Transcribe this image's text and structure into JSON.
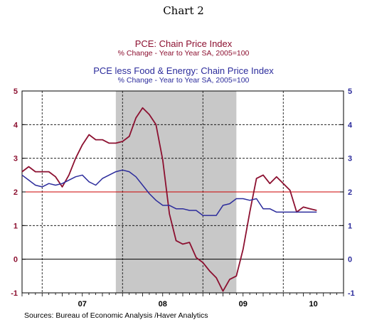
{
  "chart_data": {
    "type": "line",
    "title": "Chart 2",
    "source": "Sources:  Bureau of Economic Analysis /Haver Analytics",
    "colors": {
      "pce": "#8c1030",
      "core": "#2c2c9c",
      "recession": "#c8c8c8",
      "ref_line": "#cc0000"
    },
    "ylim": [
      -1,
      5
    ],
    "yticks": [
      "-1",
      "0",
      "1",
      "2",
      "3",
      "4",
      "5"
    ],
    "yticks_right": [
      "-1",
      "0",
      "1",
      "2",
      "3",
      "4",
      "5"
    ],
    "x_categories": [
      "07",
      "08",
      "09",
      "10"
    ],
    "x_start": "2006-10",
    "x_end": "2010-10",
    "recession": [
      "2007-12",
      "2009-06"
    ],
    "reference_line": 2,
    "grid": "dashed",
    "series": [
      {
        "name": "PCE: Chain Price Index",
        "subtitle": "% Change - Year to Year     SA, 2005=100",
        "x": [
          "2006-10",
          "2006-11",
          "2006-12",
          "2007-01",
          "2007-02",
          "2007-03",
          "2007-04",
          "2007-05",
          "2007-06",
          "2007-07",
          "2007-08",
          "2007-09",
          "2007-10",
          "2007-11",
          "2007-12",
          "2008-01",
          "2008-02",
          "2008-03",
          "2008-04",
          "2008-05",
          "2008-06",
          "2008-07",
          "2008-08",
          "2008-09",
          "2008-10",
          "2008-11",
          "2008-12",
          "2009-01",
          "2009-02",
          "2009-03",
          "2009-04",
          "2009-05",
          "2009-06",
          "2009-07",
          "2009-08",
          "2009-09",
          "2009-10",
          "2009-11",
          "2009-12",
          "2010-01",
          "2010-02",
          "2010-03",
          "2010-04",
          "2010-05",
          "2010-06"
        ],
        "values": [
          2.6,
          2.75,
          2.6,
          2.6,
          2.6,
          2.45,
          2.15,
          2.5,
          3.0,
          3.4,
          3.7,
          3.55,
          3.55,
          3.45,
          3.45,
          3.5,
          3.65,
          4.2,
          4.5,
          4.3,
          4.0,
          2.95,
          1.35,
          0.55,
          0.45,
          0.5,
          0.05,
          -0.1,
          -0.35,
          -0.55,
          -0.95,
          -0.6,
          -0.5,
          0.3,
          1.4,
          2.4,
          2.5,
          2.25,
          2.45,
          2.25,
          2.05,
          1.4,
          1.55,
          1.5,
          1.45
        ]
      },
      {
        "name": "PCE less Food & Energy: Chain Price Index",
        "subtitle": "% Change - Year to Year     SA, 2005=100",
        "x": [
          "2006-10",
          "2006-11",
          "2006-12",
          "2007-01",
          "2007-02",
          "2007-03",
          "2007-04",
          "2007-05",
          "2007-06",
          "2007-07",
          "2007-08",
          "2007-09",
          "2007-10",
          "2007-11",
          "2007-12",
          "2008-01",
          "2008-02",
          "2008-03",
          "2008-04",
          "2008-05",
          "2008-06",
          "2008-07",
          "2008-08",
          "2008-09",
          "2008-10",
          "2008-11",
          "2008-12",
          "2009-01",
          "2009-02",
          "2009-03",
          "2009-04",
          "2009-05",
          "2009-06",
          "2009-07",
          "2009-08",
          "2009-09",
          "2009-10",
          "2009-11",
          "2009-12",
          "2010-01",
          "2010-02",
          "2010-03",
          "2010-04",
          "2010-05",
          "2010-06"
        ],
        "values": [
          2.5,
          2.35,
          2.2,
          2.15,
          2.25,
          2.2,
          2.25,
          2.35,
          2.45,
          2.5,
          2.3,
          2.2,
          2.4,
          2.5,
          2.6,
          2.65,
          2.6,
          2.45,
          2.2,
          1.95,
          1.75,
          1.6,
          1.6,
          1.5,
          1.5,
          1.45,
          1.45,
          1.3,
          1.3,
          1.3,
          1.6,
          1.65,
          1.8,
          1.8,
          1.75,
          1.8,
          1.5,
          1.5,
          1.4,
          1.4,
          1.4,
          1.4,
          1.4,
          1.4,
          1.4
        ]
      }
    ]
  }
}
